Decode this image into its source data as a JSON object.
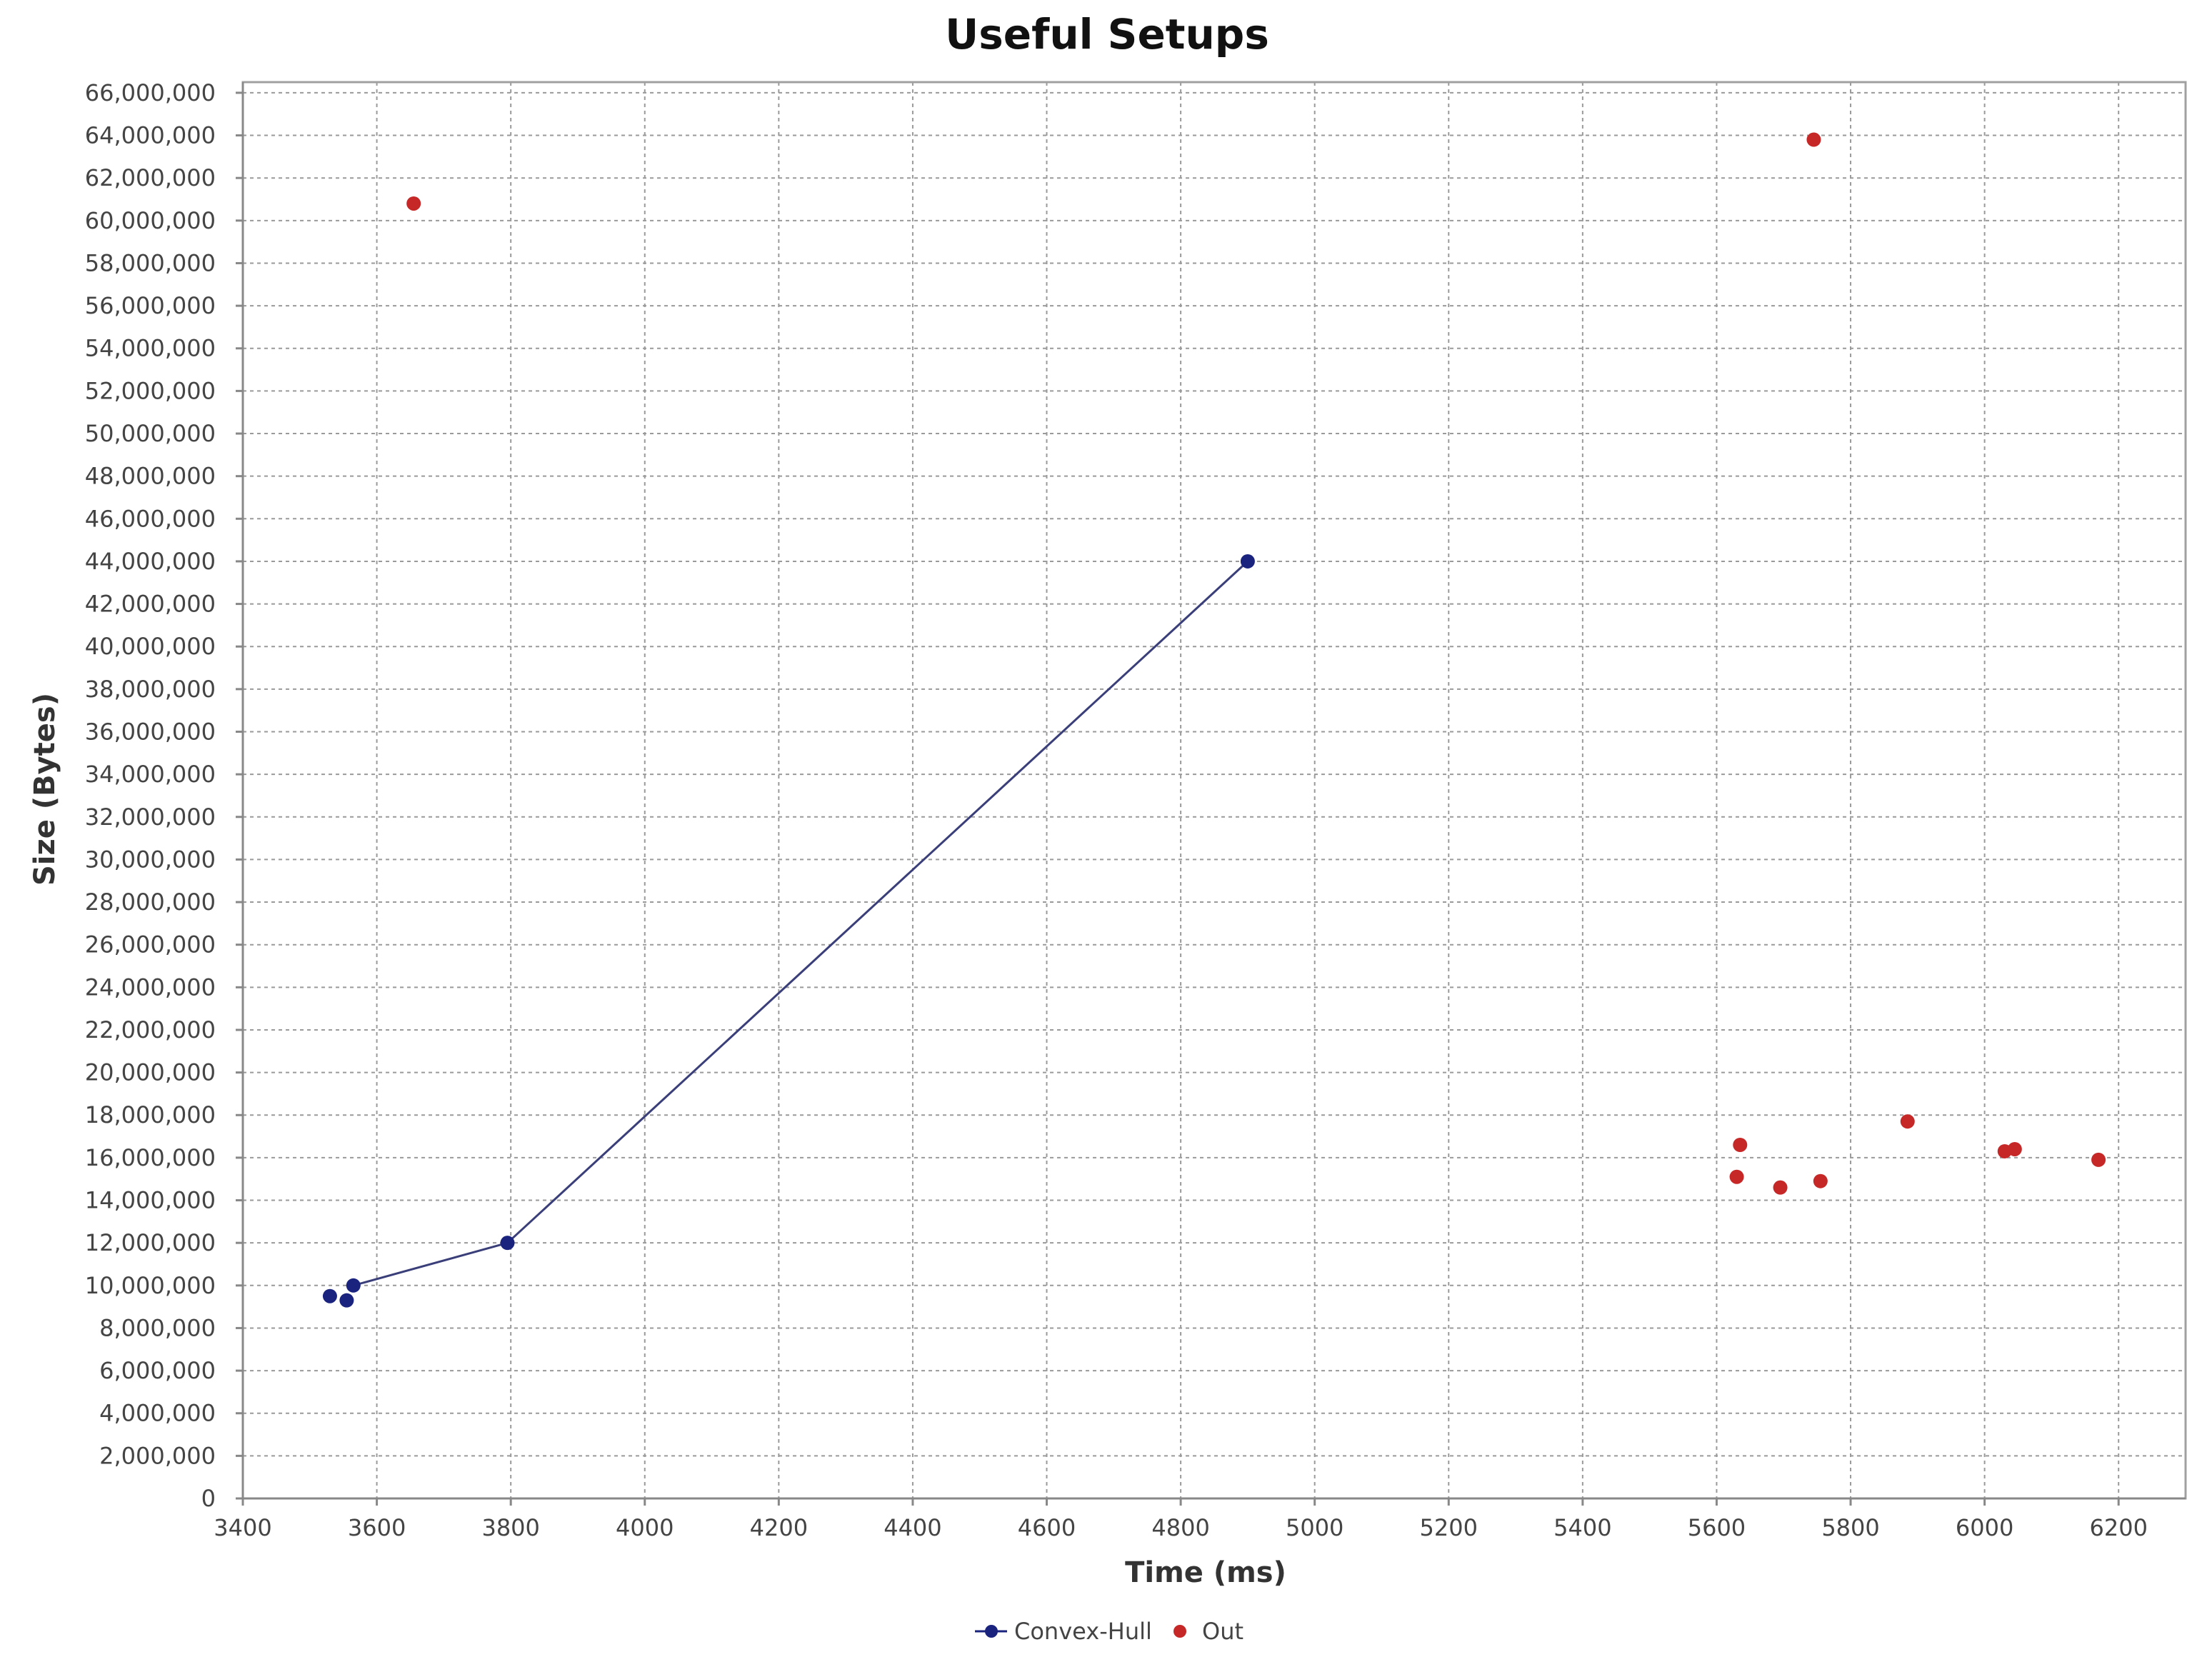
{
  "chart_data": {
    "type": "scatter",
    "title": "Useful Setups",
    "xlabel": "Time (ms)",
    "ylabel": "Size (Bytes)",
    "xlim": [
      3400,
      6300
    ],
    "ylim": [
      0,
      66500000
    ],
    "xticks": [
      3400,
      3600,
      3800,
      4000,
      4200,
      4400,
      4600,
      4800,
      5000,
      5200,
      5400,
      5600,
      5800,
      6000,
      6200
    ],
    "xtick_labels": [
      "3400",
      "3600",
      "3800",
      "4000",
      "4200",
      "4400",
      "4600",
      "4800",
      "5000",
      "5200",
      "5400",
      "5600",
      "5800",
      "6000",
      "6200"
    ],
    "yticks": [
      0,
      2000000,
      4000000,
      6000000,
      8000000,
      10000000,
      12000000,
      14000000,
      16000000,
      18000000,
      20000000,
      22000000,
      24000000,
      26000000,
      28000000,
      30000000,
      32000000,
      34000000,
      36000000,
      38000000,
      40000000,
      42000000,
      44000000,
      46000000,
      48000000,
      50000000,
      52000000,
      54000000,
      56000000,
      58000000,
      60000000,
      62000000,
      64000000,
      66000000
    ],
    "ytick_labels": [
      "0",
      "2,000,000",
      "4,000,000",
      "6,000,000",
      "8,000,000",
      "10,000,000",
      "12,000,000",
      "14,000,000",
      "16,000,000",
      "18,000,000",
      "20,000,000",
      "22,000,000",
      "24,000,000",
      "26,000,000",
      "28,000,000",
      "30,000,000",
      "32,000,000",
      "34,000,000",
      "36,000,000",
      "38,000,000",
      "40,000,000",
      "42,000,000",
      "44,000,000",
      "46,000,000",
      "48,000,000",
      "50,000,000",
      "52,000,000",
      "54,000,000",
      "56,000,000",
      "58,000,000",
      "60,000,000",
      "62,000,000",
      "64,000,000",
      "66,000,000"
    ],
    "grid": true,
    "legend_position": "bottom-center",
    "series": [
      {
        "name": "Convex-Hull",
        "mode": "line+markers",
        "color": "#1a237e",
        "points": [
          {
            "x": 3530,
            "y": 9500000
          },
          {
            "x": 3555,
            "y": 9300000
          },
          {
            "x": 3565,
            "y": 10000000
          },
          {
            "x": 3795,
            "y": 12000000
          },
          {
            "x": 4900,
            "y": 44000000
          }
        ],
        "line_path": [
          {
            "x": 3565,
            "y": 10000000
          },
          {
            "x": 3795,
            "y": 12000000
          },
          {
            "x": 4900,
            "y": 44000000
          }
        ]
      },
      {
        "name": "Out",
        "mode": "markers",
        "color": "#c62828",
        "points": [
          {
            "x": 3655,
            "y": 60800000
          },
          {
            "x": 5745,
            "y": 63800000
          },
          {
            "x": 5635,
            "y": 16600000
          },
          {
            "x": 5630,
            "y": 15100000
          },
          {
            "x": 5695,
            "y": 14600000
          },
          {
            "x": 5755,
            "y": 14900000
          },
          {
            "x": 5885,
            "y": 17700000
          },
          {
            "x": 6030,
            "y": 16300000
          },
          {
            "x": 6045,
            "y": 16400000
          },
          {
            "x": 6170,
            "y": 15900000
          }
        ]
      }
    ]
  }
}
